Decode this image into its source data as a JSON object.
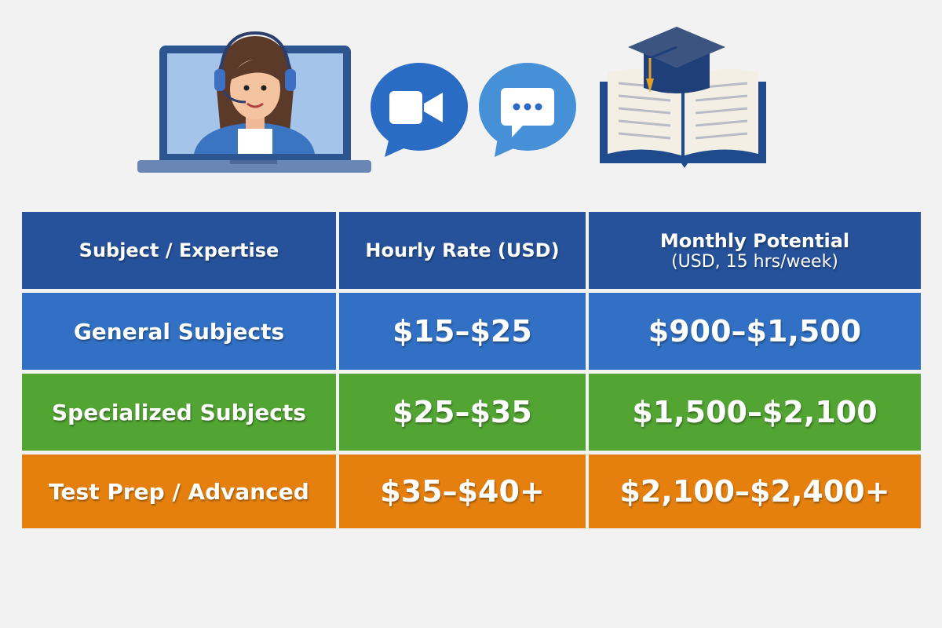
{
  "illustrations": {
    "laptop": "laptop-tutor-headset-icon",
    "video": "video-camera-bubble-icon",
    "chat": "chat-bubble-icon",
    "book": "open-book-graduation-cap-icon"
  },
  "colors": {
    "background": "#f2f2f2",
    "header": "#26529b",
    "general": "#3170c4",
    "specialized": "#52a433",
    "test_prep": "#e5800f"
  },
  "table": {
    "headers": {
      "subject": "Subject / Expertise",
      "hourly": "Hourly Rate (USD)",
      "monthly": "Monthly Potential",
      "monthly_sub": "(USD, 15 hrs/week)"
    },
    "rows": [
      {
        "subject": "General Subjects",
        "hourly": "$15–$25",
        "monthly": "$900–$1,500"
      },
      {
        "subject": "Specialized Subjects",
        "hourly": "$25–$35",
        "monthly": "$1,500–$2,100"
      },
      {
        "subject": "Test Prep / Advanced",
        "hourly": "$35–$40+",
        "monthly": "$2,100–$2,400+"
      }
    ]
  }
}
